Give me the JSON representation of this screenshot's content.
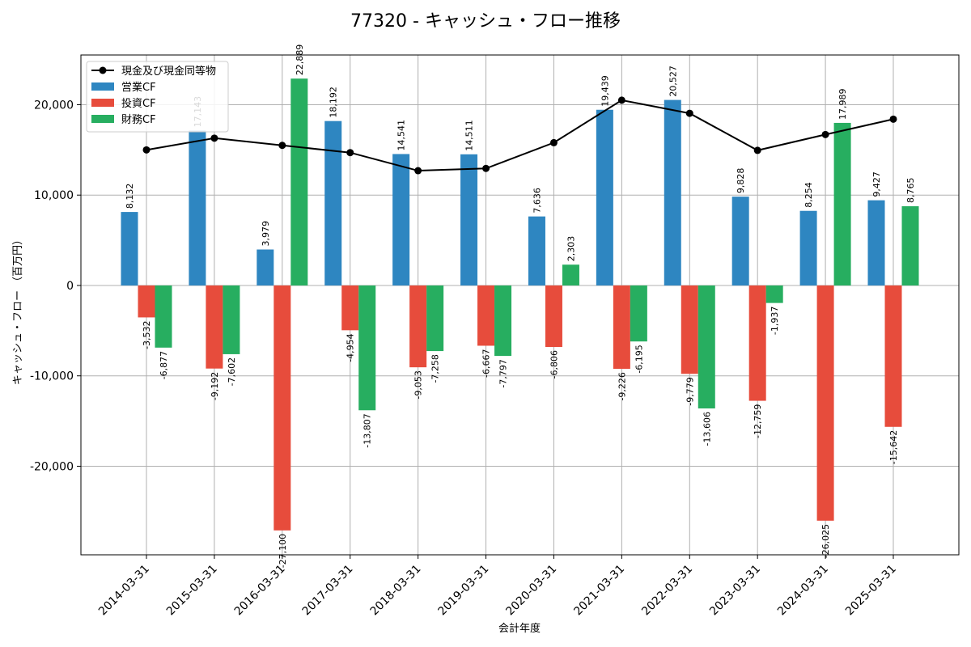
{
  "chart_data": {
    "type": "bar",
    "title": "77320 - キャッシュ・フロー推移",
    "xlabel": "会計年度",
    "ylabel": "キャッシュ・フロー （百万円）",
    "categories": [
      "2014-03-31",
      "2015-03-31",
      "2016-03-31",
      "2017-03-31",
      "2018-03-31",
      "2019-03-31",
      "2020-03-31",
      "2021-03-31",
      "2022-03-31",
      "2023-03-31",
      "2024-03-31",
      "2025-03-31"
    ],
    "ylim": [
      -29800,
      25500
    ],
    "yticks": [
      -20000,
      -10000,
      0,
      10000,
      20000
    ],
    "ytick_labels": [
      "-20,000",
      "-10,000",
      "0",
      "10,000",
      "20,000"
    ],
    "grid": true,
    "legend_position": "top-left",
    "series": [
      {
        "name": "営業CF",
        "kind": "bar",
        "color": "#2e86c1",
        "values": [
          8132,
          17143,
          3979,
          18192,
          14541,
          14511,
          7636,
          19439,
          20527,
          9828,
          8254,
          9427
        ],
        "labels": [
          "8,132",
          "17,143",
          "3,979",
          "18,192",
          "14,541",
          "14,511",
          "7,636",
          "19,439",
          "20,527",
          "9,828",
          "8,254",
          "9,427"
        ]
      },
      {
        "name": "投資CF",
        "kind": "bar",
        "color": "#e74c3c",
        "values": [
          -3532,
          -9192,
          -27100,
          -4954,
          -9053,
          -6667,
          -6806,
          -9226,
          -9779,
          -12759,
          -26025,
          -15642
        ],
        "labels": [
          "-3,532",
          "-9,192",
          "-27,100",
          "-4,954",
          "-9,053",
          "-6,667",
          "-6,806",
          "-9,226",
          "-9,779",
          "-12,759",
          "-26,025",
          "-15,642"
        ]
      },
      {
        "name": "財務CF",
        "kind": "bar",
        "color": "#27ae60",
        "values": [
          -6877,
          -7602,
          22889,
          -13807,
          -7258,
          -7797,
          2303,
          -6195,
          -13606,
          -1937,
          17989,
          8765
        ],
        "labels": [
          "-6,877",
          "-7,602",
          "22,889",
          "-13,807",
          "-7,258",
          "-7,797",
          "2,303",
          "-6,195",
          "-13,606",
          "-1,937",
          "17,989",
          "8,765"
        ]
      },
      {
        "name": "現金及び現金同等物",
        "kind": "line",
        "color": "#000000",
        "values": [
          15000,
          16300,
          15500,
          14700,
          12700,
          12950,
          15800,
          20500,
          19050,
          14950,
          16700,
          18400
        ]
      }
    ]
  }
}
